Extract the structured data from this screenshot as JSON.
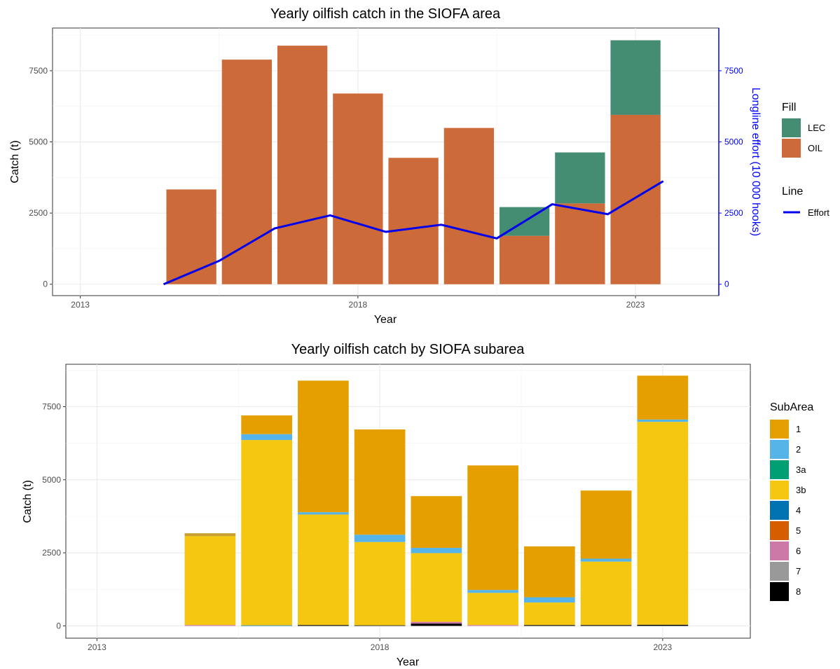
{
  "chart_data": [
    {
      "type": "bar",
      "stacked": true,
      "title": "Yearly oilfish catch in the SIOFA area",
      "xlabel": "Year",
      "ylabel": "Catch (t)",
      "y2label": "Longline effort (10 000 hooks)",
      "xlim": [
        2012.5,
        2024.5
      ],
      "ylim": [
        -400,
        9000
      ],
      "y2lim": [
        -400,
        9000
      ],
      "x_ticks": [
        2013,
        2018,
        2023
      ],
      "y_ticks": [
        0,
        2500,
        5000,
        7500
      ],
      "y2_ticks": [
        0,
        2500,
        5000,
        7500
      ],
      "grid": true,
      "legend_position": "right",
      "categories": [
        2015,
        2016,
        2017,
        2018,
        2019,
        2020,
        2021,
        2022,
        2023
      ],
      "fill_legend_title": "Fill",
      "line_legend_title": "Line",
      "series": [
        {
          "name": "OIL",
          "color": "#cc6a3a",
          "values": [
            3330,
            7890,
            8380,
            6700,
            4440,
            5490,
            1700,
            2840,
            5950
          ]
        },
        {
          "name": "LEC",
          "color": "#448c72",
          "values": [
            0,
            0,
            0,
            0,
            0,
            0,
            1010,
            1790,
            2620
          ]
        }
      ],
      "legend_order": [
        "LEC",
        "OIL"
      ],
      "line_series": {
        "name": "Effort",
        "color": "#0000ee",
        "x": [
          2014.5,
          2015.5,
          2016.5,
          2017.5,
          2018.5,
          2019.5,
          2020.5,
          2021.5,
          2022.5,
          2023.5
        ],
        "values": [
          0,
          820,
          1960,
          2420,
          1840,
          2090,
          1610,
          2810,
          2460,
          3620
        ]
      }
    },
    {
      "type": "bar",
      "stacked": true,
      "title": "Yearly oilfish catch by SIOFA subarea",
      "xlabel": "Year",
      "ylabel": "Catch (t)",
      "xlim": [
        2012.45,
        2024.55
      ],
      "ylim": [
        -420,
        8950
      ],
      "x_ticks": [
        2013,
        2018,
        2023
      ],
      "y_ticks": [
        0,
        2500,
        5000,
        7500
      ],
      "grid": true,
      "legend_position": "right",
      "legend_title": "SubArea",
      "categories": [
        2015,
        2016,
        2017,
        2018,
        2019,
        2020,
        2021,
        2022,
        2023
      ],
      "series": [
        {
          "name": "8",
          "color": "#000000",
          "values": [
            0,
            0,
            30,
            20,
            80,
            0,
            30,
            30,
            40
          ]
        },
        {
          "name": "7",
          "color": "#999999",
          "values": [
            0,
            0,
            0,
            0,
            0,
            0,
            0,
            0,
            0
          ]
        },
        {
          "name": "6",
          "color": "#cc79a7",
          "values": [
            30,
            0,
            0,
            0,
            60,
            30,
            0,
            0,
            0
          ]
        },
        {
          "name": "5",
          "color": "#d55e00",
          "values": [
            0,
            0,
            0,
            0,
            0,
            0,
            0,
            0,
            0
          ]
        },
        {
          "name": "4",
          "color": "#0072b2",
          "values": [
            0,
            20,
            0,
            0,
            0,
            0,
            0,
            0,
            0
          ]
        },
        {
          "name": "3b",
          "color": "#f5c710",
          "values": [
            3040,
            6340,
            3780,
            2850,
            2350,
            1100,
            770,
            2170,
            6940
          ]
        },
        {
          "name": "3a",
          "color": "#009e73",
          "values": [
            0,
            0,
            0,
            0,
            0,
            0,
            0,
            0,
            0
          ]
        },
        {
          "name": "2",
          "color": "#56b4e9",
          "values": [
            0,
            200,
            80,
            250,
            180,
            100,
            180,
            100,
            80
          ]
        },
        {
          "name": "1",
          "color": "#e69f00",
          "values": [
            100,
            640,
            4500,
            3600,
            1770,
            4260,
            1740,
            2330,
            1500
          ]
        }
      ],
      "legend_order": [
        "1",
        "2",
        "3a",
        "3b",
        "4",
        "5",
        "6",
        "7",
        "8"
      ],
      "special_colors": {
        "1_2015": "#c8a030"
      }
    }
  ]
}
